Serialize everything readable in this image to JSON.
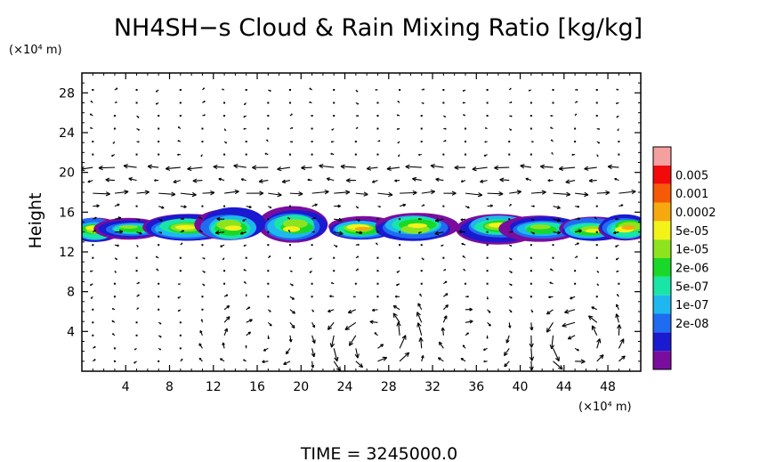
{
  "chart_data": {
    "type": "heatmap",
    "title": "NH4SH−s Cloud & Rain Mixing Ratio [kg/kg]",
    "ylabel": "Height",
    "y_unit": "(×10⁴ m)",
    "x_unit": "(×10⁴ m)",
    "xlim": [
      0,
      51
    ],
    "ylim": [
      0,
      30
    ],
    "x_ticks": [
      "4",
      "8",
      "12",
      "16",
      "20",
      "24",
      "28",
      "32",
      "36",
      "40",
      "44",
      "48"
    ],
    "y_ticks": [
      "4",
      "8",
      "12",
      "16",
      "20",
      "24",
      "28"
    ],
    "x_tick_values": [
      4,
      8,
      12,
      16,
      20,
      24,
      28,
      32,
      36,
      40,
      44,
      48
    ],
    "y_tick_values": [
      4,
      8,
      12,
      16,
      20,
      24,
      28
    ],
    "colorbar": {
      "labels": [
        "0.005",
        "0.001",
        "0.0002",
        "5e-05",
        "1e-05",
        "2e-06",
        "5e-07",
        "1e-07",
        "2e-08"
      ],
      "colors": [
        "#7a0d9e",
        "#1a1ad0",
        "#1f6cf0",
        "#1fb8ee",
        "#19e6a6",
        "#19d829",
        "#8ee31f",
        "#f3f31a",
        "#f7a80e",
        "#f55a08",
        "#f20a0a",
        "#f5a0a0"
      ]
    },
    "cloud_bands": [
      {
        "x0": 0,
        "x1": 2.5,
        "y0": 12.8,
        "y1": 15.6,
        "peak": "5e-05"
      },
      {
        "x0": 2.5,
        "x1": 6.5,
        "y0": 13.3,
        "y1": 15.4,
        "peak": "1e-05"
      },
      {
        "x0": 6.5,
        "x1": 12.5,
        "y0": 13.0,
        "y1": 16.0,
        "peak": "5e-05"
      },
      {
        "x0": 12.5,
        "x1": 20.5,
        "y0": 12.8,
        "y1": 16.4,
        "peak": "5e-05"
      },
      {
        "x0": 23.5,
        "x1": 27.5,
        "y0": 13.2,
        "y1": 15.6,
        "peak": "0.0002"
      },
      {
        "x0": 29,
        "x1": 39.5,
        "y0": 13.0,
        "y1": 16.0,
        "peak": "5e-05"
      },
      {
        "x0": 39.5,
        "x1": 44.5,
        "y0": 13.0,
        "y1": 15.8,
        "peak": "1e-05"
      },
      {
        "x0": 44.5,
        "x1": 48.5,
        "y0": 13.0,
        "y1": 15.6,
        "peak": "5e-05"
      },
      {
        "x0": 48.5,
        "x1": 51,
        "y0": 13.0,
        "y1": 15.8,
        "peak": "0.0002"
      }
    ],
    "wind_vectors": "horizontal jet near 20 (westward) and 18 (eastward); overturning cells centered near x=26,y=3 and x=45,y=3",
    "grid": false
  },
  "footer": {
    "time_label": "TIME  =  3245000.0"
  }
}
